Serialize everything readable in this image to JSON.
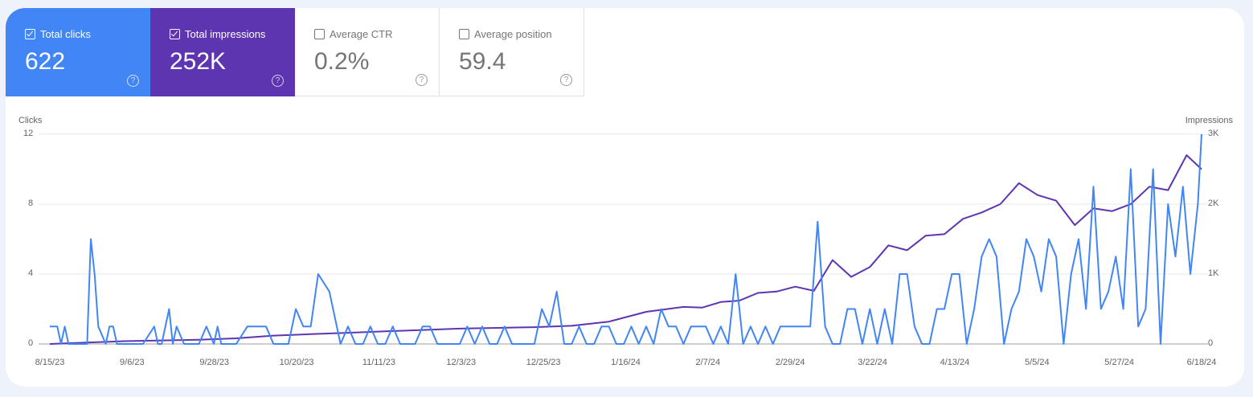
{
  "metrics": [
    {
      "id": "clicks",
      "label": "Total clicks",
      "value": "622",
      "checked": true,
      "color": "#4285f4"
    },
    {
      "id": "impressions",
      "label": "Total impressions",
      "value": "252K",
      "checked": true,
      "color": "#5e35b1"
    },
    {
      "id": "ctr",
      "label": "Average CTR",
      "value": "0.2%",
      "checked": false
    },
    {
      "id": "position",
      "label": "Average position",
      "value": "59.4",
      "checked": false
    }
  ],
  "help_icon": "?",
  "chart_data": {
    "type": "line",
    "title": "",
    "left_axis": {
      "label": "Clicks",
      "ticks": [
        "0",
        "4",
        "8",
        "12"
      ],
      "range": [
        0,
        12
      ]
    },
    "right_axis": {
      "label": "Impressions",
      "ticks": [
        "0",
        "1K",
        "2K",
        "3K"
      ],
      "range": [
        0,
        3000
      ]
    },
    "x_tick_labels": [
      "8/15/23",
      "9/6/23",
      "9/28/23",
      "10/20/23",
      "11/11/23",
      "12/3/23",
      "12/25/23",
      "1/16/24",
      "2/7/24",
      "2/29/24",
      "3/22/24",
      "4/13/24",
      "5/5/24",
      "5/27/24",
      "6/18/24"
    ],
    "grid": true,
    "legend_position": "top (metric cards)",
    "series": [
      {
        "name": "Clicks",
        "axis": "left",
        "color": "#4285f4",
        "x": [
          0,
          2,
          3,
          4,
          5,
          8,
          10,
          11,
          12,
          13,
          15,
          16,
          17,
          18,
          19,
          22,
          25,
          28,
          29,
          30,
          32,
          33,
          34,
          36,
          38,
          40,
          42,
          44,
          45,
          46,
          48,
          50,
          53,
          56,
          58,
          60,
          62,
          64,
          66,
          68,
          70,
          72,
          75,
          78,
          80,
          82,
          84,
          86,
          88,
          90,
          92,
          94,
          96,
          98,
          100,
          102,
          104,
          106,
          108,
          110,
          112,
          114,
          116,
          118,
          120,
          122,
          124,
          126,
          128,
          130,
          132,
          134,
          136,
          138,
          140,
          142,
          144,
          146,
          148,
          150,
          152,
          154,
          156,
          158,
          160,
          162,
          164,
          166,
          168,
          170,
          172,
          174,
          176,
          178,
          180,
          182,
          184,
          186,
          188,
          190,
          192,
          194,
          196,
          198,
          200,
          202,
          204,
          206,
          208,
          210,
          212,
          214,
          216,
          218,
          220,
          222,
          224,
          226,
          228,
          230,
          232,
          234,
          236,
          238,
          240,
          242,
          244,
          246,
          248,
          250,
          252,
          254,
          256,
          258,
          260,
          262,
          264,
          266,
          268,
          270,
          272,
          274,
          276,
          278,
          280,
          282,
          284,
          286,
          288,
          290,
          292,
          294,
          296,
          298,
          300,
          302,
          304,
          306,
          308,
          309
        ],
        "values": [
          1,
          1,
          0,
          1,
          0,
          0,
          0,
          6,
          4,
          1,
          0,
          1,
          1,
          0,
          0,
          0,
          0,
          1,
          0,
          0,
          2,
          0,
          1,
          0,
          0,
          0,
          1,
          0,
          1,
          0,
          0,
          0,
          1,
          1,
          1,
          0,
          0,
          0,
          2,
          1,
          1,
          4,
          3,
          0,
          1,
          0,
          0,
          1,
          0,
          0,
          1,
          0,
          0,
          0,
          1,
          1,
          0,
          0,
          0,
          0,
          1,
          0,
          1,
          0,
          0,
          1,
          0,
          0,
          0,
          0,
          2,
          1,
          3,
          0,
          0,
          1,
          0,
          0,
          1,
          1,
          0,
          0,
          1,
          0,
          1,
          0,
          2,
          1,
          1,
          0,
          1,
          1,
          1,
          0,
          1,
          0,
          4,
          0,
          1,
          0,
          1,
          0,
          1,
          1,
          1,
          1,
          1,
          7,
          1,
          0,
          0,
          2,
          2,
          0,
          2,
          0,
          2,
          0,
          4,
          4,
          1,
          0,
          0,
          2,
          2,
          4,
          4,
          0,
          2,
          5,
          6,
          5,
          0,
          2,
          3,
          6,
          5,
          3,
          6,
          5,
          0,
          4,
          6,
          2,
          9,
          2,
          3,
          5,
          2,
          10,
          1,
          2,
          10,
          0,
          8,
          5,
          9,
          4,
          8,
          12
        ]
      },
      {
        "name": "Impressions",
        "axis": "right",
        "color": "#5e35b1",
        "x": [
          0,
          10,
          20,
          30,
          40,
          50,
          60,
          70,
          80,
          90,
          100,
          110,
          120,
          130,
          140,
          150,
          160,
          170,
          175,
          180,
          185,
          190,
          195,
          200,
          205,
          210,
          215,
          220,
          225,
          230,
          235,
          240,
          245,
          250,
          255,
          260,
          265,
          270,
          275,
          280,
          285,
          290,
          295,
          300,
          305,
          309
        ],
        "values": [
          0,
          20,
          40,
          50,
          60,
          80,
          120,
          140,
          160,
          180,
          200,
          220,
          230,
          240,
          260,
          320,
          460,
          530,
          520,
          600,
          620,
          730,
          750,
          820,
          760,
          1200,
          960,
          1100,
          1410,
          1340,
          1550,
          1570,
          1790,
          1880,
          2000,
          2300,
          2130,
          2050,
          1700,
          1940,
          1900,
          2000,
          2250,
          2200,
          2700,
          2500
        ]
      }
    ]
  }
}
